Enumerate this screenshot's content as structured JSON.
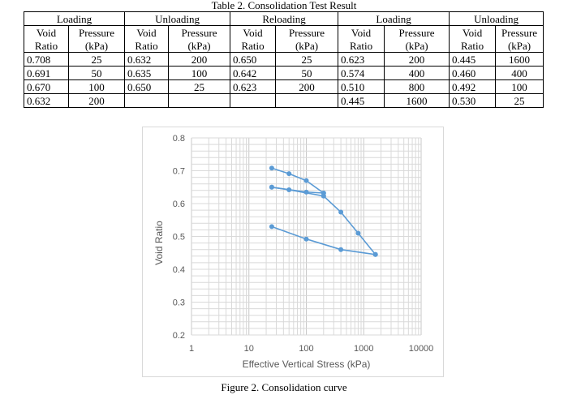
{
  "table": {
    "caption": "Table 2. Consolidation Test Result",
    "groups": [
      "Loading",
      "Unloading",
      "Reloading",
      "Loading",
      "Unloading"
    ],
    "col_headers": [
      [
        "Void",
        "Pressure"
      ],
      [
        "Void",
        "Pressure"
      ],
      [
        "Void",
        "Pressure"
      ],
      [
        "Void",
        "Pressure"
      ],
      [
        "Void",
        "Pressure"
      ]
    ],
    "col_headers2": [
      [
        "Ratio",
        "(kPa)"
      ],
      [
        "Ratio",
        "(kPa)"
      ],
      [
        "Ratio",
        "(kPa)"
      ],
      [
        "Ratio",
        "(kPa)"
      ],
      [
        "Ratio",
        "(kPa)"
      ]
    ],
    "rows": [
      [
        "0.708",
        "25",
        "0.632",
        "200",
        "0.650",
        "25",
        "0.623",
        "200",
        "0.445",
        "1600"
      ],
      [
        "0.691",
        "50",
        "0.635",
        "100",
        "0.642",
        "50",
        "0.574",
        "400",
        "0.460",
        "400"
      ],
      [
        "0.670",
        "100",
        "0.650",
        "25",
        "0.623",
        "200",
        "0.510",
        "800",
        "0.492",
        "100"
      ],
      [
        "0.632",
        "200",
        "",
        "",
        "",
        "",
        "0.445",
        "1600",
        "0.530",
        "25"
      ]
    ]
  },
  "figure": {
    "caption": "Figure 2. Consolidation curve"
  },
  "chart_data": {
    "type": "line",
    "xlabel": "Effective Vertical Stress (kPa)",
    "ylabel": "Void Ratio",
    "xscale": "log",
    "xlim": [
      1,
      10000
    ],
    "ylim": [
      0.2,
      0.8
    ],
    "x_ticks": [
      "1",
      "10",
      "100",
      "1000",
      "10000"
    ],
    "y_ticks": [
      "0.2",
      "0.3",
      "0.4",
      "0.5",
      "0.6",
      "0.7",
      "0.8"
    ],
    "grid": true,
    "line_color": "#5b9bd5",
    "series": [
      {
        "x": [
          25,
          50,
          100,
          200
        ],
        "y": [
          0.708,
          0.691,
          0.67,
          0.632
        ]
      },
      {
        "x": [
          200,
          100,
          25
        ],
        "y": [
          0.632,
          0.635,
          0.65
        ]
      },
      {
        "x": [
          25,
          50,
          200
        ],
        "y": [
          0.65,
          0.642,
          0.623
        ]
      },
      {
        "x": [
          200,
          400,
          800,
          1600
        ],
        "y": [
          0.623,
          0.574,
          0.51,
          0.445
        ]
      },
      {
        "x": [
          1600,
          400,
          100,
          25
        ],
        "y": [
          0.445,
          0.46,
          0.492,
          0.53
        ]
      }
    ]
  }
}
